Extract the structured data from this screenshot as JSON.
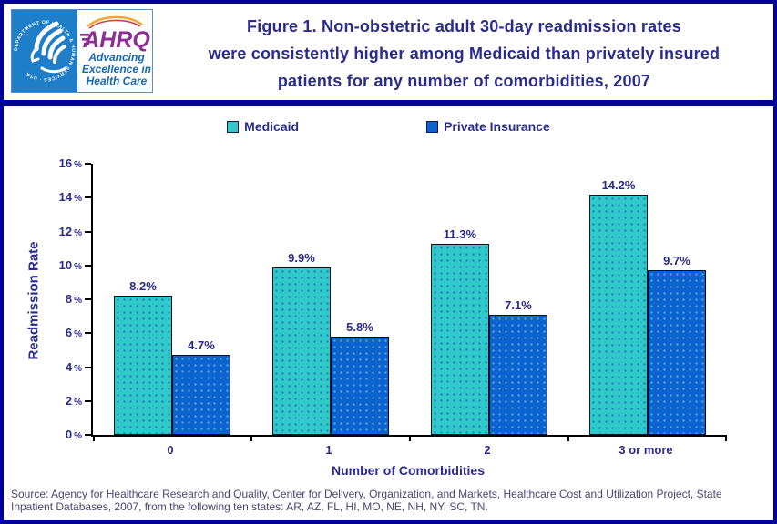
{
  "header": {
    "logo": {
      "seal_text": "DEPARTMENT OF HEALTH & HUMAN SERVICES · USA",
      "brand": "AHRQ",
      "tagline_lines": [
        "Advancing",
        "Excellence in",
        "Health Care"
      ]
    },
    "title_lines": [
      "Figure 1. Non-obstetric adult 30-day readmission rates",
      "were consistently higher among Medicaid than privately insured",
      "patients for any number of comorbidities, 2007"
    ]
  },
  "chart_data": {
    "type": "bar",
    "title": "Figure 1. Non-obstetric adult 30-day readmission rates were consistently higher among Medicaid than privately insured patients for any number of comorbidities, 2007",
    "categories": [
      "0",
      "1",
      "2",
      "3 or more"
    ],
    "series": [
      {
        "name": "Medicaid",
        "color": "#30C9C9",
        "values": [
          8.2,
          9.9,
          11.3,
          14.2
        ]
      },
      {
        "name": "Private Insurance",
        "color": "#0A63CE",
        "values": [
          4.7,
          5.8,
          7.1,
          9.7
        ]
      }
    ],
    "xlabel": "Number of Comorbidities",
    "ylabel": "Readmission Rate",
    "ylim": [
      0,
      16
    ],
    "ytick_step": 2,
    "yticks": [
      "0%",
      "2%",
      "4%",
      "6%",
      "8%",
      "10%",
      "12%",
      "14%",
      "16%"
    ],
    "value_label_suffix": "%",
    "legend_position": "top",
    "grid": false
  },
  "footer": {
    "source_lines": [
      "Source: Agency for Healthcare Research and Quality, Center for Delivery, Organization, and Markets, Healthcare Cost and Utilization Project, State",
      "Inpatient Databases, 2007, from the following ten states: AR, AZ, FL, HI, MO, NE, NH, NY, SC, TN."
    ]
  },
  "colors": {
    "frame_border": "#000099",
    "navy_text": "#2B2B8E",
    "medicaid_bar": "#30C9C9",
    "private_bar": "#0A63CE",
    "axis_line": "#000000",
    "source_text": "#474775",
    "hhs_seal_blue": "#1E7EC8",
    "ahrq_purple": "#8E2E94",
    "tagline_blue": "#1668B2"
  }
}
